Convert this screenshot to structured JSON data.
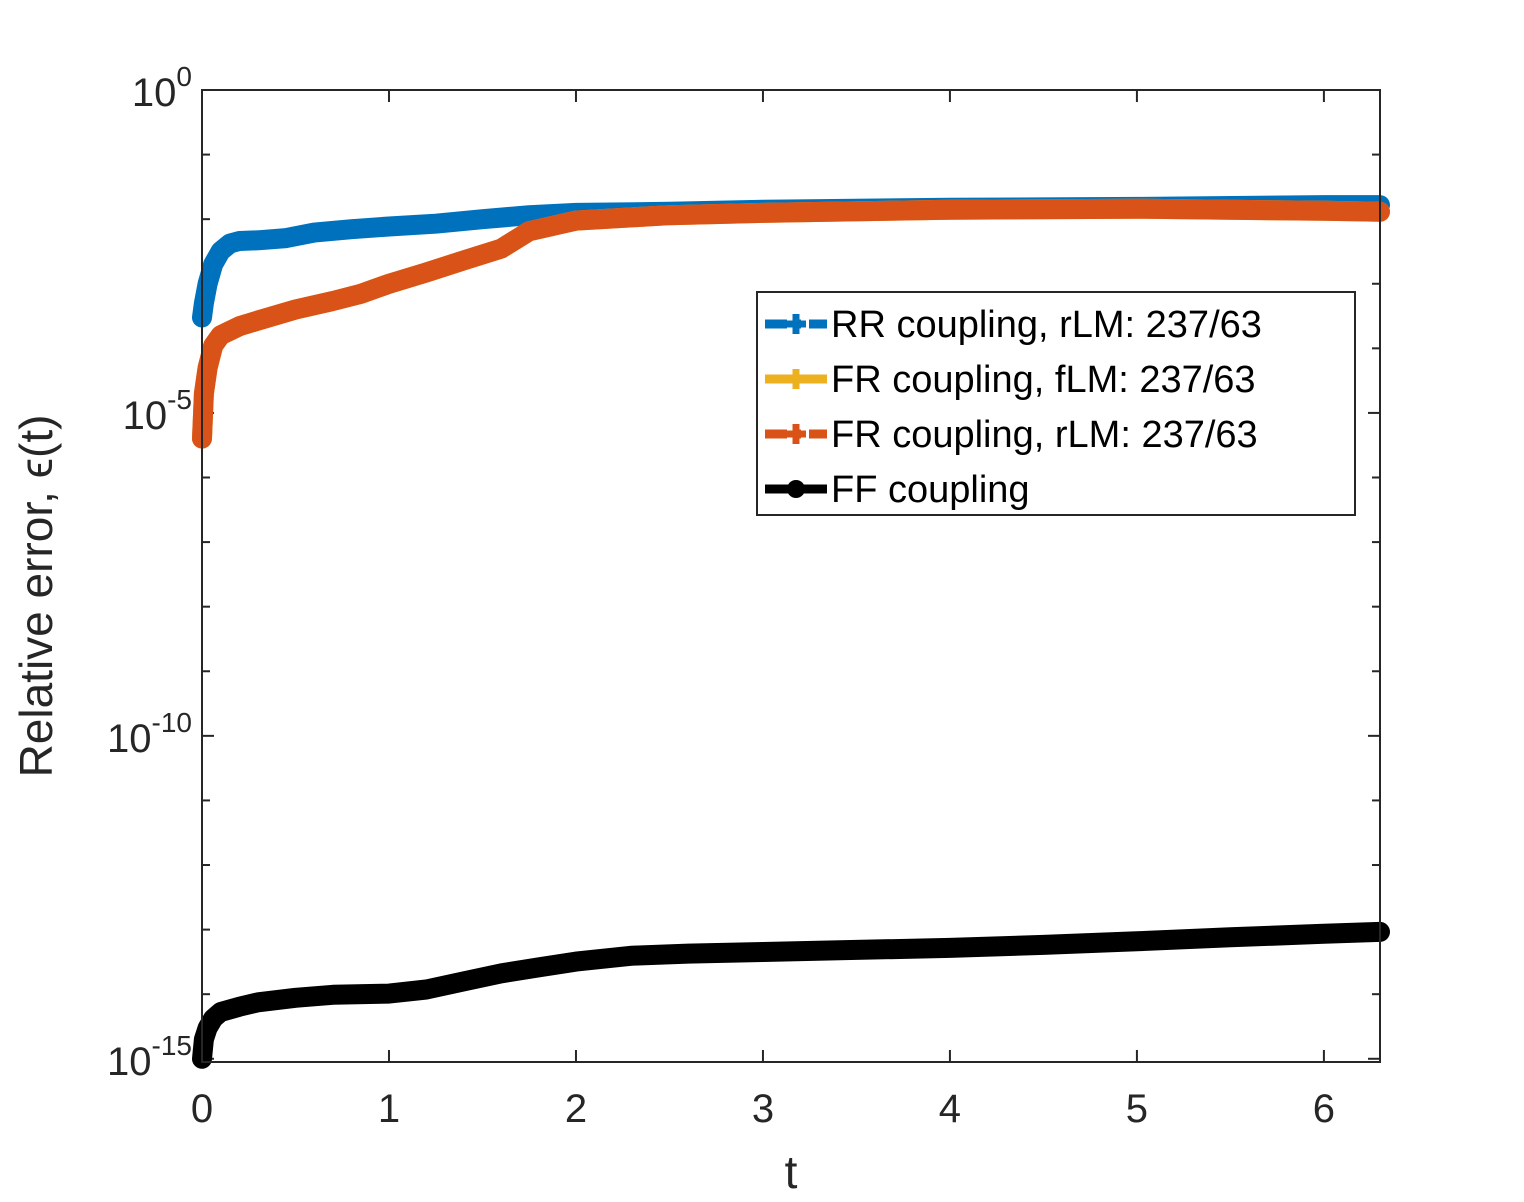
{
  "chart_data": {
    "type": "line",
    "xlabel": "t",
    "ylabel": "Relative error, ϵ(t)",
    "y_scale": "log",
    "xlim": [
      0,
      6.3
    ],
    "ylim_exponents": [
      -15.05,
      0
    ],
    "x_ticks": [
      0,
      1,
      2,
      3,
      4,
      5,
      6
    ],
    "x_tick_labels": [
      "0",
      "1",
      "2",
      "3",
      "4",
      "5",
      "6"
    ],
    "y_tick_exponents": [
      0,
      -5,
      -10,
      -15
    ],
    "y_tick_labels": [
      {
        "base": "10",
        "exp": "0"
      },
      {
        "base": "10",
        "exp": "-5"
      },
      {
        "base": "10",
        "exp": "-10"
      },
      {
        "base": "10",
        "exp": "-15"
      }
    ],
    "grid": false,
    "legend_position": "center-right",
    "series": [
      {
        "name": "RR coupling, rLM: 237/63",
        "color": "#0072BD",
        "line_style": "dash-dot",
        "marker": "plus",
        "x": [
          0,
          0.01,
          0.03,
          0.06,
          0.1,
          0.15,
          0.2,
          0.3,
          0.45,
          0.6,
          0.8,
          1.0,
          1.25,
          1.5,
          1.75,
          2.0,
          2.5,
          3.0,
          4.0,
          5.0,
          6.0,
          6.3
        ],
        "y": [
          0.0003,
          0.0005,
          0.001,
          0.002,
          0.0032,
          0.0042,
          0.0046,
          0.0047,
          0.0051,
          0.0062,
          0.007,
          0.0077,
          0.0085,
          0.01,
          0.0115,
          0.0125,
          0.013,
          0.014,
          0.015,
          0.0155,
          0.0165,
          0.0165
        ]
      },
      {
        "name": "FR coupling, fLM: 237/63",
        "color": "#EDB120",
        "line_style": "solid",
        "marker": "plus",
        "x": [
          0,
          0.01,
          0.03,
          0.06,
          0.1,
          0.2,
          0.3,
          0.5,
          0.7,
          0.85,
          1.0,
          1.2,
          1.4,
          1.6,
          1.75,
          2.0,
          2.5,
          3.0,
          4.0,
          5.0,
          6.0,
          6.3
        ],
        "y": [
          4e-06,
          2e-05,
          5e-05,
          0.00011,
          0.00016,
          0.00022,
          0.00027,
          0.0004,
          0.00054,
          0.0007,
          0.001,
          0.0015,
          0.0023,
          0.0035,
          0.0065,
          0.0095,
          0.0115,
          0.0125,
          0.014,
          0.0145,
          0.0135,
          0.013
        ]
      },
      {
        "name": "FR coupling, rLM: 237/63",
        "color": "#D95319",
        "line_style": "dash-dot",
        "marker": "plus",
        "x": [
          0,
          0.01,
          0.03,
          0.06,
          0.1,
          0.2,
          0.3,
          0.5,
          0.7,
          0.85,
          1.0,
          1.2,
          1.4,
          1.6,
          1.75,
          2.0,
          2.5,
          3.0,
          4.0,
          5.0,
          6.0,
          6.3
        ],
        "y": [
          4e-06,
          2e-05,
          5e-05,
          0.00011,
          0.00016,
          0.00022,
          0.00027,
          0.0004,
          0.00054,
          0.0007,
          0.001,
          0.0015,
          0.0023,
          0.0035,
          0.0065,
          0.0095,
          0.0115,
          0.0125,
          0.014,
          0.0145,
          0.0135,
          0.013
        ]
      },
      {
        "name": "FF coupling",
        "color": "#000000",
        "line_style": "solid",
        "marker": "dot",
        "x": [
          0,
          0.01,
          0.03,
          0.06,
          0.1,
          0.2,
          0.3,
          0.5,
          0.7,
          1.0,
          1.2,
          1.4,
          1.6,
          1.8,
          2.0,
          2.3,
          2.6,
          3.0,
          3.5,
          4.0,
          4.5,
          5.0,
          5.5,
          6.0,
          6.3
        ],
        "y": [
          1e-15,
          2e-15,
          3e-15,
          4.2e-15,
          5.3e-15,
          6.4e-15,
          7.5e-15,
          8.8e-15,
          9.8e-15,
          1.02e-14,
          1.18e-14,
          1.58e-14,
          2.1e-14,
          2.6e-14,
          3.2e-14,
          3.95e-14,
          4.25e-14,
          4.5e-14,
          4.85e-14,
          5.2e-14,
          5.8e-14,
          6.6e-14,
          7.6e-14,
          8.6e-14,
          9.2e-14
        ]
      }
    ]
  }
}
